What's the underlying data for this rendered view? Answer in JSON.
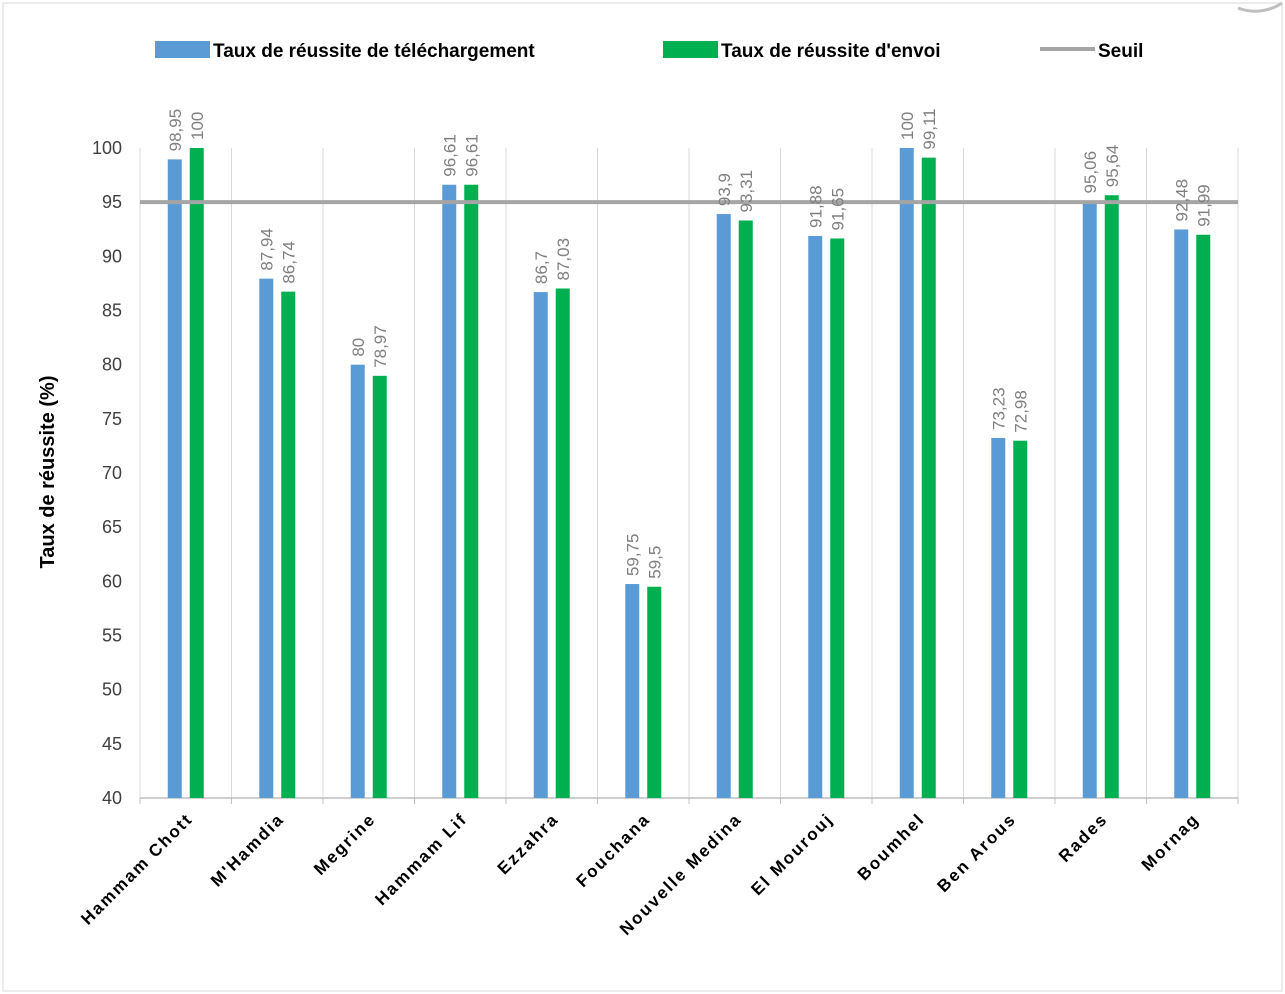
{
  "chart_data": {
    "type": "bar",
    "title": "",
    "xlabel": "",
    "ylabel": "Taux de réussite (%)",
    "ylim": [
      40,
      100
    ],
    "yticks": [
      40,
      45,
      50,
      55,
      60,
      65,
      70,
      75,
      80,
      85,
      90,
      95,
      100
    ],
    "grid": "vertical",
    "legend_position": "top",
    "categories": [
      "Hammam Chott",
      "M'Hamdia",
      "Megrine",
      "Hammam Lif",
      "Ezzahra",
      "Fouchana",
      "Nouvelle Medina",
      "El Mourouj",
      "Boumhel",
      "Ben Arous",
      "Rades",
      "Mornag"
    ],
    "series": [
      {
        "name": "Taux de réussite de téléchargement",
        "color": "#5b9bd5",
        "values": [
          98.95,
          87.94,
          80,
          96.61,
          86.7,
          59.75,
          93.9,
          91.88,
          100,
          73.23,
          95.06,
          92.48
        ],
        "labels": [
          "98,95",
          "87,94",
          "80",
          "96,61",
          "86,7",
          "59,75",
          "93,9",
          "91,88",
          "100",
          "73,23",
          "95,06",
          "92,48"
        ]
      },
      {
        "name": "Taux de réussite d'envoi",
        "color": "#00b050",
        "values": [
          100,
          86.74,
          78.97,
          96.61,
          87.03,
          59.5,
          93.31,
          91.65,
          99.11,
          72.98,
          95.64,
          91.99
        ],
        "labels": [
          "100",
          "86,74",
          "78,97",
          "96,61",
          "87,03",
          "59,5",
          "93,31",
          "91,65",
          "99,11",
          "72,98",
          "95,64",
          "91,99"
        ]
      }
    ],
    "threshold": {
      "name": "Seuil",
      "value": 95,
      "color": "#a5a5a5"
    },
    "colors": {
      "gridline": "#d9d9d9",
      "axis": "#bfbfbf",
      "label": "#7f7f7f",
      "tick": "#404040"
    }
  }
}
